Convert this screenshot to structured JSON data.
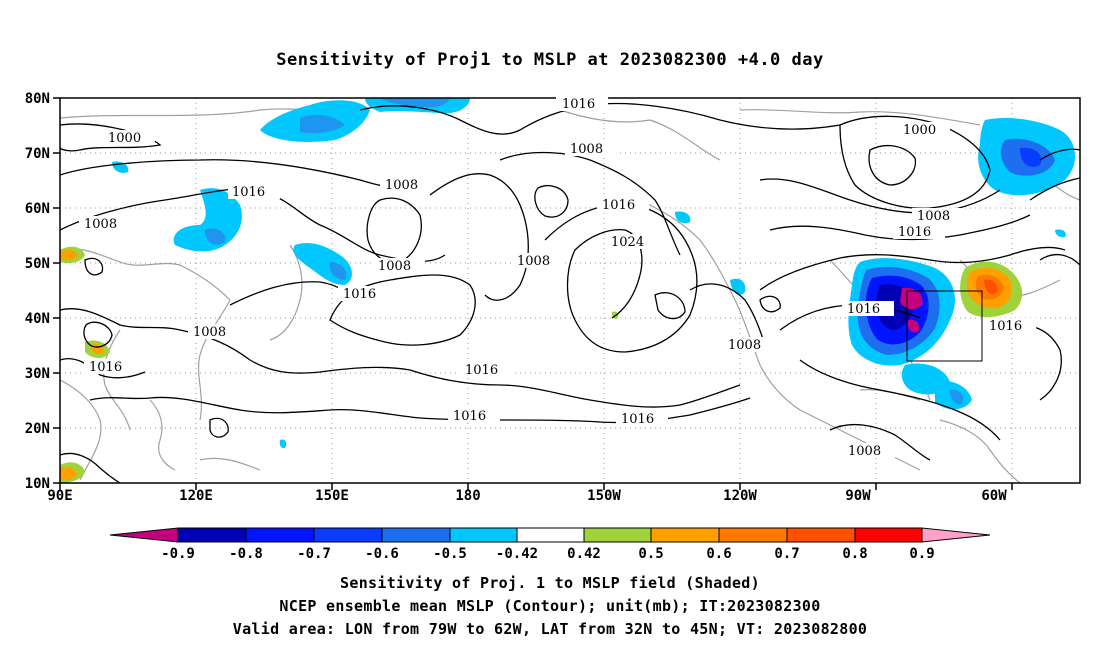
{
  "title": "Sensitivity of Proj1 to MSLP at 2023082300 +4.0 day",
  "axes": {
    "lat_labels": [
      "80N",
      "70N",
      "60N",
      "50N",
      "40N",
      "30N",
      "20N",
      "10N"
    ],
    "lon_labels": [
      "90E",
      "120E",
      "150E",
      "180",
      "150W",
      "120W",
      "90W",
      "60W"
    ]
  },
  "contour_labels": [
    "1016",
    "1000",
    "1008",
    "1016",
    "1008",
    "1016",
    "1008",
    "1008",
    "1016",
    "1024",
    "1016",
    "1008",
    "1016",
    "1016",
    "1016",
    "1008",
    "1000",
    "1008",
    "1016",
    "1016",
    "1016",
    "1008"
  ],
  "colorbar": {
    "labels": [
      "-0.9",
      "-0.8",
      "-0.7",
      "-0.6",
      "-0.5",
      "-0.42",
      "0.42",
      "0.5",
      "0.6",
      "0.7",
      "0.8",
      "0.9"
    ],
    "colors": [
      "#c4007e",
      "#0000b4",
      "#0014ff",
      "#0a3cff",
      "#1e6ef0",
      "#1e96f0",
      "#00c8ff",
      "#ffffff",
      "#a0d23c",
      "#ffa000",
      "#ff7800",
      "#ff5000",
      "#ff2800",
      "#ff0000",
      "#ffa0c8"
    ]
  },
  "captions": [
    "Sensitivity of Proj. 1 to MSLP field (Shaded)",
    "NCEP ensemble mean MSLP (Contour); unit(mb); IT:2023082300",
    "Valid area: LON from 79W to 62W, LAT from 32N to 45N; VT: 2023082800"
  ]
}
